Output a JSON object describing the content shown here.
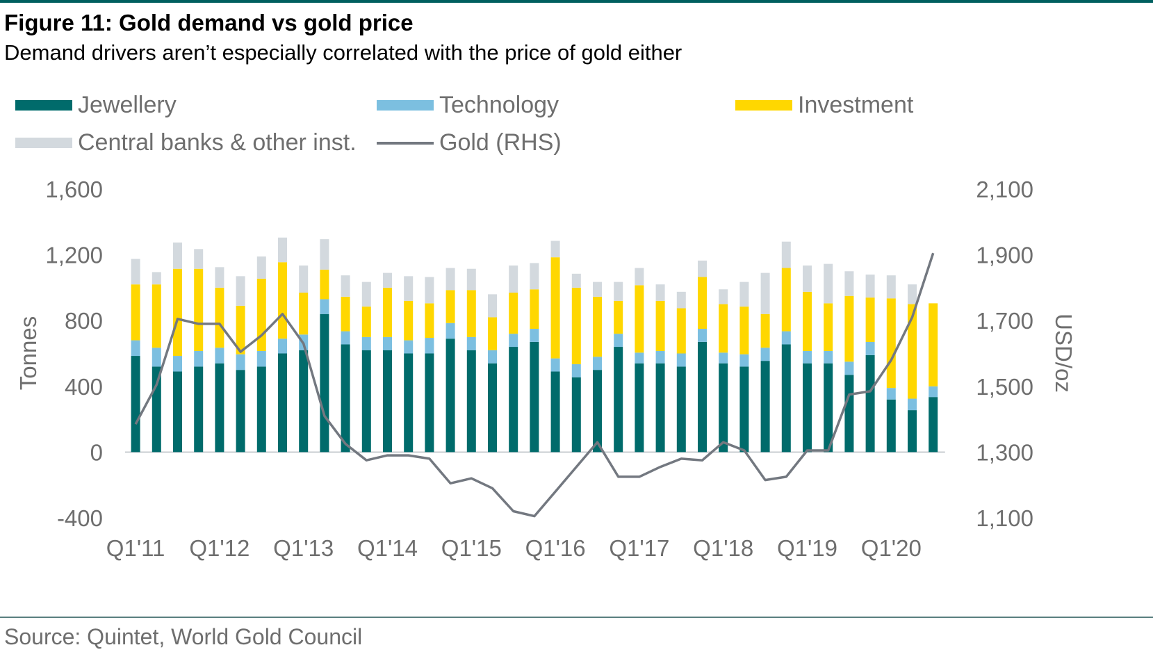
{
  "header": {
    "title": "Figure 11: Gold demand vs gold price",
    "subtitle": "Demand drivers aren’t especially correlated with the price of gold either"
  },
  "legend": {
    "jewellery": "Jewellery",
    "technology": "Technology",
    "investment": "Investment",
    "central_banks": "Central banks & other inst.",
    "gold": "Gold (RHS)"
  },
  "colors": {
    "jewellery": "#006b6b",
    "technology": "#7cbfe0",
    "investment": "#ffd700",
    "central_banks": "#d3d9de",
    "gold": "#737880",
    "axis_text": "#6e6e6e",
    "rule": "#005f5f"
  },
  "footer": {
    "source": "Source: Quintet, World Gold Council"
  },
  "chart_data": {
    "type": "bar",
    "stacked": true,
    "ylabel": "Tonnes",
    "y2label": "USD/oz",
    "ylim": [
      -400,
      1600
    ],
    "y2lim": [
      1100,
      2100
    ],
    "yticks": [
      "-400",
      "0",
      "400",
      "800",
      "1,200",
      "1,600"
    ],
    "y2ticks": [
      "1,100",
      "1,300",
      "1,500",
      "1,700",
      "1,900",
      "2,100"
    ],
    "xtick_labels": [
      "Q1'11",
      "Q1'12",
      "Q1'13",
      "Q1'14",
      "Q1'15",
      "Q1'16",
      "Q1'17",
      "Q1'18",
      "Q1'19",
      "Q1'20"
    ],
    "categories": [
      "Q1'11",
      "Q2'11",
      "Q3'11",
      "Q4'11",
      "Q1'12",
      "Q2'12",
      "Q3'12",
      "Q4'12",
      "Q1'13",
      "Q2'13",
      "Q3'13",
      "Q4'13",
      "Q1'14",
      "Q2'14",
      "Q3'14",
      "Q4'14",
      "Q1'15",
      "Q2'15",
      "Q3'15",
      "Q4'15",
      "Q1'16",
      "Q2'16",
      "Q3'16",
      "Q4'16",
      "Q1'17",
      "Q2'17",
      "Q3'17",
      "Q4'17",
      "Q1'18",
      "Q2'18",
      "Q3'18",
      "Q4'18",
      "Q1'19",
      "Q2'19",
      "Q3'19",
      "Q4'19",
      "Q1'20",
      "Q2'20",
      "Q3'20"
    ],
    "series": [
      {
        "name": "Jewellery",
        "kind": "bar",
        "values": [
          585,
          520,
          490,
          520,
          540,
          500,
          520,
          600,
          620,
          840,
          655,
          620,
          620,
          600,
          600,
          690,
          620,
          540,
          640,
          670,
          490,
          455,
          500,
          640,
          540,
          540,
          520,
          670,
          540,
          520,
          555,
          655,
          540,
          540,
          470,
          590,
          320,
          255,
          335
        ]
      },
      {
        "name": "Technology",
        "kind": "bar",
        "values": [
          95,
          115,
          95,
          95,
          95,
          95,
          95,
          90,
          95,
          90,
          80,
          80,
          80,
          80,
          95,
          95,
          80,
          80,
          80,
          80,
          80,
          80,
          80,
          80,
          65,
          75,
          80,
          80,
          65,
          75,
          80,
          80,
          75,
          75,
          80,
          80,
          70,
          70,
          65
        ]
      },
      {
        "name": "Investment",
        "kind": "bar",
        "values": [
          340,
          385,
          530,
          500,
          365,
          295,
          440,
          465,
          255,
          180,
          210,
          185,
          300,
          240,
          210,
          200,
          285,
          200,
          250,
          240,
          615,
          465,
          365,
          200,
          410,
          305,
          275,
          315,
          295,
          290,
          205,
          385,
          360,
          290,
          400,
          270,
          545,
          575,
          505
        ]
      },
      {
        "name": "Central banks & other inst.",
        "kind": "bar",
        "values": [
          155,
          75,
          160,
          120,
          125,
          180,
          135,
          150,
          165,
          185,
          130,
          150,
          90,
          150,
          160,
          135,
          130,
          140,
          165,
          160,
          100,
          85,
          90,
          115,
          105,
          100,
          100,
          100,
          90,
          150,
          250,
          160,
          160,
          240,
          150,
          140,
          140,
          120,
          0
        ]
      },
      {
        "name": "Gold (RHS)",
        "kind": "line",
        "axis": "right",
        "values": [
          1385,
          1505,
          1705,
          1690,
          1690,
          1605,
          1655,
          1720,
          1630,
          1410,
          1325,
          1275,
          1290,
          1290,
          1280,
          1205,
          1220,
          1190,
          1120,
          1105,
          1180,
          1255,
          1330,
          1225,
          1225,
          1255,
          1280,
          1275,
          1330,
          1305,
          1215,
          1225,
          1305,
          1305,
          1475,
          1485,
          1580,
          1710,
          1905
        ]
      }
    ]
  }
}
